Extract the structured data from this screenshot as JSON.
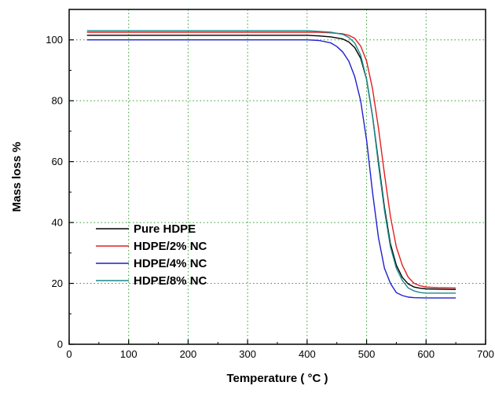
{
  "chart_data": {
    "type": "line",
    "title": "",
    "xlabel": "Temperature ( °C )",
    "ylabel": "Mass loss %",
    "xlim": [
      0,
      700
    ],
    "ylim": [
      0,
      110
    ],
    "x_ticks": [
      "0",
      "100",
      "200",
      "300",
      "400",
      "500",
      "600",
      "700"
    ],
    "y_ticks": [
      "0",
      "20",
      "40",
      "60",
      "80",
      "100"
    ],
    "grid": true,
    "legend_position": "lower-left",
    "series": [
      {
        "name": "Pure HDPE",
        "color": "#000000",
        "x": [
          30,
          400,
          420,
          440,
          460,
          470,
          480,
          490,
          500,
          510,
          520,
          530,
          540,
          550,
          560,
          570,
          580,
          590,
          600,
          620,
          650
        ],
        "y": [
          101.5,
          101.5,
          101.3,
          101,
          100.3,
          99.3,
          97.5,
          94,
          87,
          75,
          60,
          45,
          33,
          26,
          22,
          19.8,
          18.8,
          18.4,
          18.2,
          18.1,
          18
        ]
      },
      {
        "name": "HDPE/2% NC",
        "color": "#e02020",
        "x": [
          30,
          400,
          420,
          440,
          460,
          470,
          480,
          490,
          500,
          510,
          520,
          530,
          540,
          550,
          560,
          570,
          580,
          590,
          600,
          620,
          650
        ],
        "y": [
          102.5,
          102.5,
          102.5,
          102.3,
          102,
          101.5,
          100.5,
          98,
          93,
          84,
          71,
          56,
          42,
          32,
          26,
          22,
          20,
          19.2,
          18.8,
          18.6,
          18.5
        ]
      },
      {
        "name": "HDPE/4% NC",
        "color": "#1f1fd0",
        "x": [
          30,
          400,
          420,
          440,
          450,
          460,
          470,
          480,
          490,
          500,
          510,
          520,
          530,
          540,
          550,
          560,
          570,
          580,
          600,
          620,
          650
        ],
        "y": [
          100,
          100,
          99.8,
          99,
          97.8,
          96,
          93,
          88,
          80,
          67,
          50,
          35,
          25,
          20,
          17,
          16,
          15.5,
          15.3,
          15.2,
          15.2,
          15.2
        ]
      },
      {
        "name": "HDPE/8% NC",
        "color": "#1a8a8a",
        "x": [
          30,
          400,
          420,
          440,
          460,
          470,
          480,
          490,
          500,
          510,
          520,
          530,
          540,
          550,
          560,
          570,
          580,
          590,
          600,
          620,
          650
        ],
        "y": [
          103,
          103,
          102.8,
          102.5,
          101.8,
          100.8,
          99,
          95,
          87,
          75,
          59,
          44,
          32,
          25,
          21,
          18.5,
          17.5,
          17,
          16.8,
          16.8,
          16.8
        ]
      }
    ]
  }
}
